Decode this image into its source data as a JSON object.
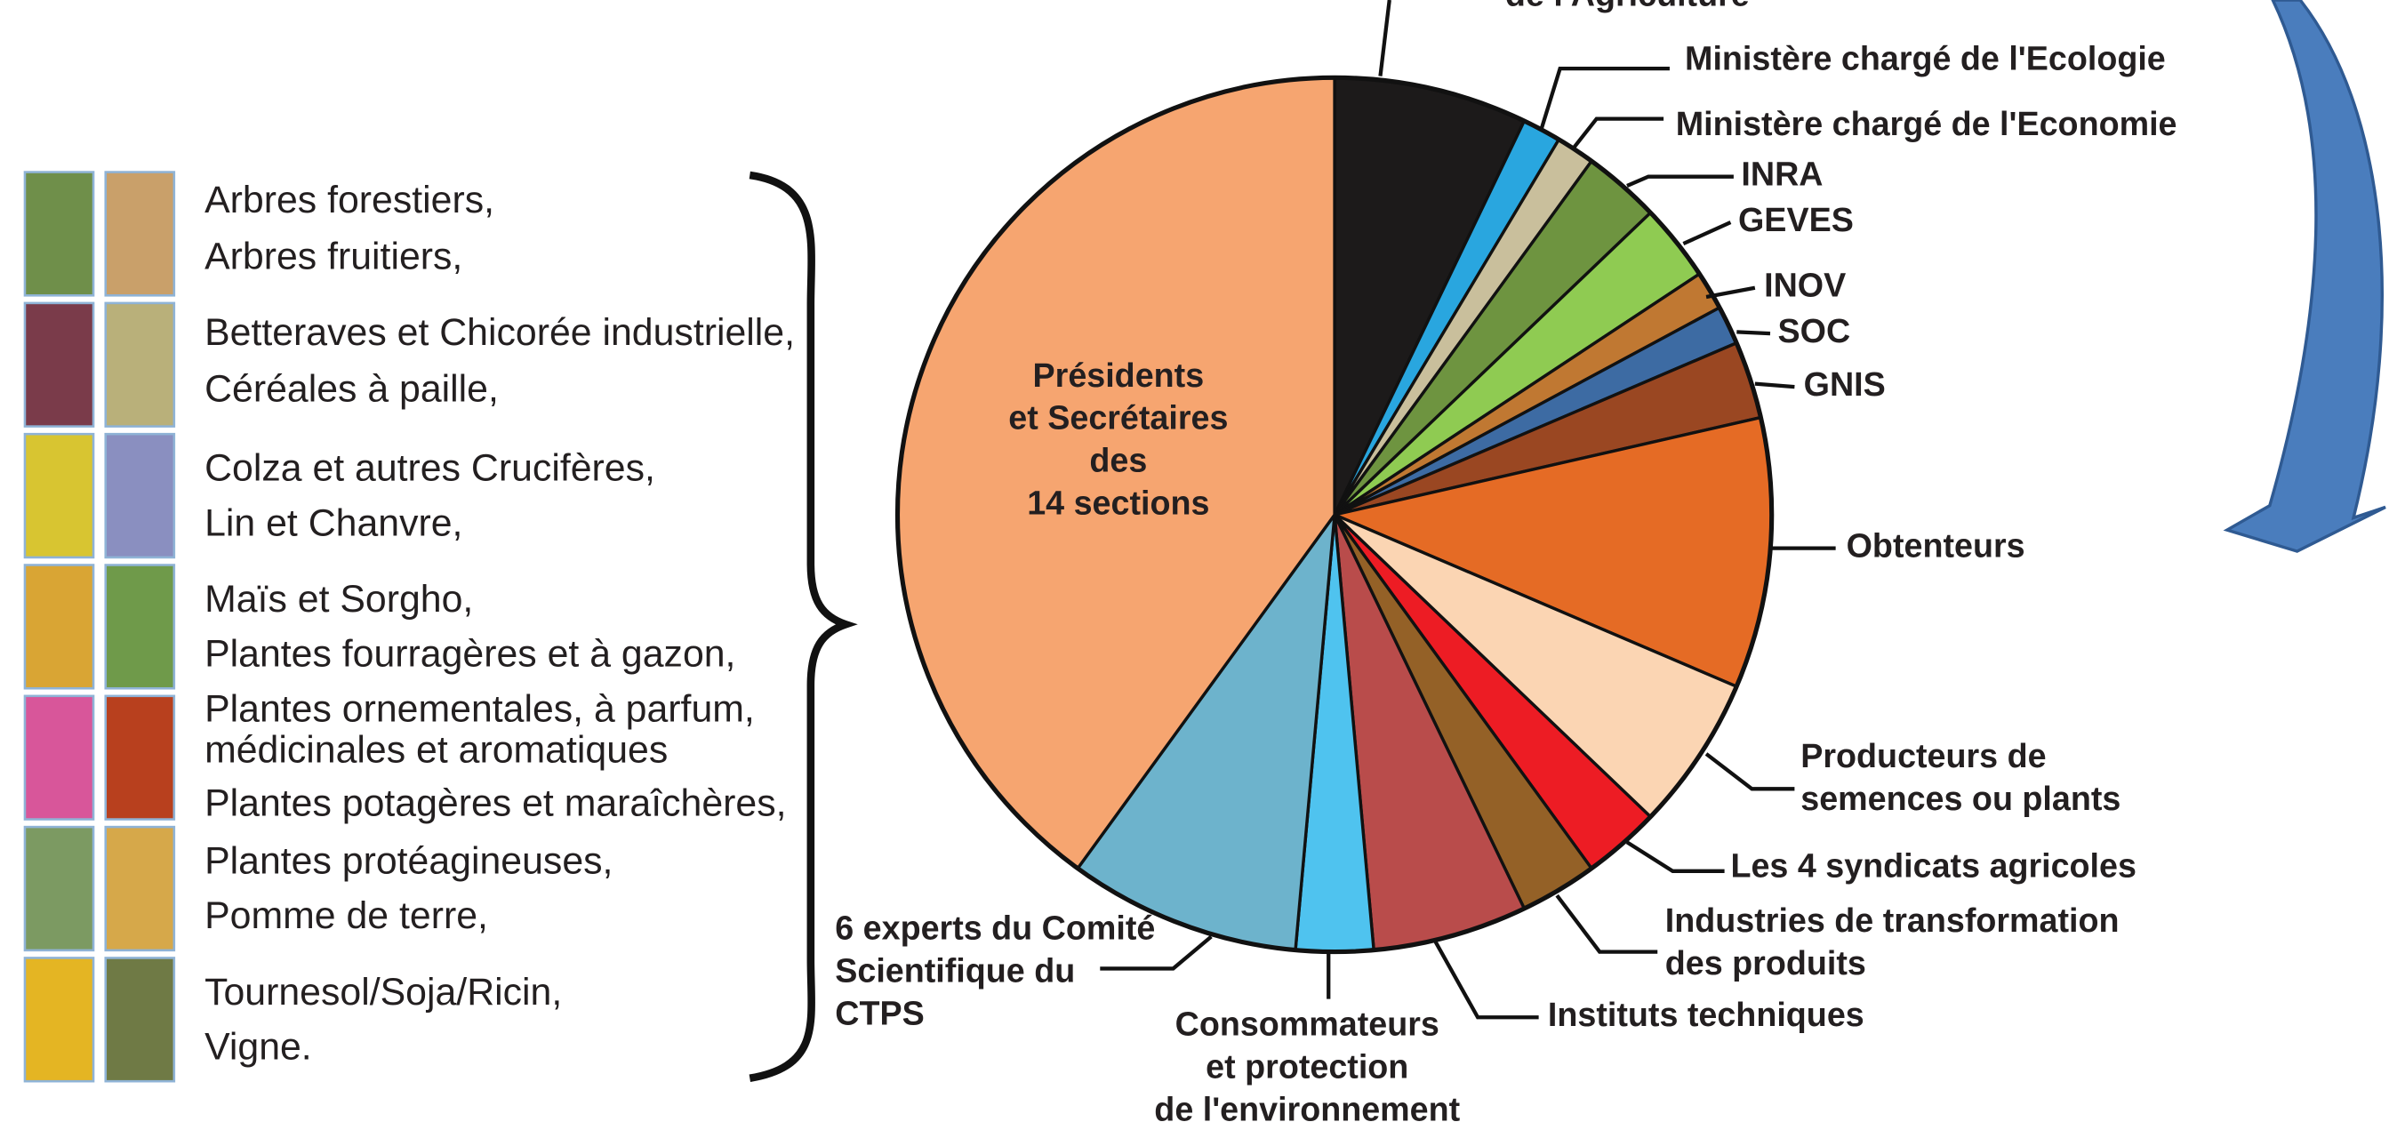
{
  "chart_data": {
    "type": "pie",
    "categories": [
      [
        "de l'Agriculture"
      ],
      [
        "Ministère chargé de l'Ecologie"
      ],
      [
        "Ministère chargé de l'Economie"
      ],
      [
        "INRA"
      ],
      [
        "GEVES"
      ],
      [
        "INOV"
      ],
      [
        "SOC"
      ],
      [
        "GNIS"
      ],
      [
        "Obtenteurs"
      ],
      [
        "Producteurs de",
        "semences ou plants"
      ],
      [
        "Les 4 syndicats agricoles"
      ],
      [
        "Industries de transformation",
        "des produits"
      ],
      [
        "Instituts techniques"
      ],
      [
        "Consommateurs",
        "et protection",
        "de l'environnement"
      ],
      [
        "6 experts du Comité",
        "Scientifique du",
        "CTPS"
      ],
      [
        "Présidents",
        "et Secrétaires",
        "des",
        "14 sections"
      ]
    ],
    "values": [
      5,
      1,
      1,
      2,
      2,
      1,
      1,
      2,
      7,
      4,
      2,
      2,
      4,
      2,
      6,
      28
    ],
    "colors": [
      "#1c1a1a",
      "#29a6df",
      "#c9bf9c",
      "#6e9440",
      "#8fcb52",
      "#c07832",
      "#3d6ba3",
      "#9a4722",
      "#e56b25",
      "#fbd5b3",
      "#ed1c24",
      "#946127",
      "#b94c4b",
      "#4fc3ef",
      "#6db3cc",
      "#f6a570"
    ]
  },
  "crops": [
    "Arbres forestiers,",
    "Arbres fruitiers,",
    "Betteraves et Chicorée industrielle,",
    "Céréales à paille,",
    "Colza et autres Crucifères,",
    "Lin et Chanvre,",
    "Maïs et Sorgho,",
    "Plantes fourragères et à gazon,",
    "Plantes ornementales, à parfum,",
    "médicinales et aromatiques",
    "Plantes potagères et maraîchères,",
    "Plantes protéagineuses,",
    "Pomme de terre,",
    "Tournesol/Soja/Ricin,",
    "Vigne."
  ]
}
